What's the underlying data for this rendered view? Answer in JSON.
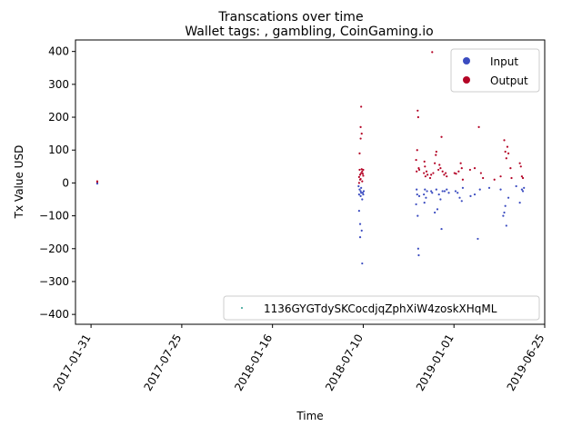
{
  "chart_data": {
    "type": "scatter",
    "title": "Transcations over time",
    "subtitle": "Wallet tags: , gambling, CoinGaming.io",
    "xlabel": "Time",
    "ylabel": "Tx Value USD",
    "xlim": [
      "2017-01-01",
      "2019-06-25"
    ],
    "ylim": [
      -430,
      435
    ],
    "x_ticks": [
      "2017-01-31",
      "2017-07-25",
      "2018-01-16",
      "2018-07-10",
      "2019-01-01",
      "2019-06-25"
    ],
    "y_ticks": [
      -400,
      -300,
      -200,
      -100,
      0,
      100,
      200,
      300,
      400
    ],
    "legend_upper": {
      "placement": "top-right",
      "entries": [
        "Input",
        "Output"
      ]
    },
    "legend_lower": {
      "placement": "bottom-right",
      "entries": [
        "1136GYGTdySKCocdjqZphXiW4zoskXHqML"
      ]
    },
    "colors": {
      "Input": "#3b4cc0",
      "Output": "#b40426",
      "address": "#2a9d8f"
    },
    "series": [
      {
        "name": "Output",
        "points": [
          [
            "2017-02-12",
            5
          ],
          [
            "2017-02-12",
            1
          ],
          [
            "2018-07-02",
            0
          ],
          [
            "2018-07-02",
            18
          ],
          [
            "2018-07-03",
            40
          ],
          [
            "2018-07-03",
            90
          ],
          [
            "2018-07-04",
            25
          ],
          [
            "2018-07-04",
            10
          ],
          [
            "2018-07-05",
            135
          ],
          [
            "2018-07-05",
            170
          ],
          [
            "2018-07-06",
            232
          ],
          [
            "2018-07-06",
            30
          ],
          [
            "2018-07-07",
            150
          ],
          [
            "2018-07-07",
            42
          ],
          [
            "2018-07-08",
            35
          ],
          [
            "2018-07-09",
            28
          ],
          [
            "2018-07-10",
            40
          ],
          [
            "2018-07-10",
            22
          ],
          [
            "2018-07-05",
            12
          ],
          [
            "2018-07-08",
            5
          ],
          [
            "2018-10-20",
            70
          ],
          [
            "2018-10-21",
            35
          ],
          [
            "2018-10-22",
            100
          ],
          [
            "2018-10-23",
            220
          ],
          [
            "2018-10-24",
            200
          ],
          [
            "2018-10-25",
            45
          ],
          [
            "2018-10-26",
            40
          ],
          [
            "2018-11-04",
            30
          ],
          [
            "2018-11-05",
            65
          ],
          [
            "2018-11-06",
            50
          ],
          [
            "2018-11-07",
            20
          ],
          [
            "2018-11-09",
            35
          ],
          [
            "2018-11-11",
            25
          ],
          [
            "2018-11-16",
            15
          ],
          [
            "2018-11-18",
            25
          ],
          [
            "2018-11-20",
            398
          ],
          [
            "2018-11-22",
            30
          ],
          [
            "2018-11-25",
            60
          ],
          [
            "2018-11-27",
            85
          ],
          [
            "2018-11-28",
            95
          ],
          [
            "2018-12-02",
            40
          ],
          [
            "2018-12-04",
            55
          ],
          [
            "2018-12-06",
            45
          ],
          [
            "2018-12-08",
            140
          ],
          [
            "2018-12-10",
            35
          ],
          [
            "2018-12-13",
            25
          ],
          [
            "2018-12-16",
            30
          ],
          [
            "2018-12-18",
            20
          ],
          [
            "2019-01-02",
            30
          ],
          [
            "2019-01-05",
            28
          ],
          [
            "2019-01-10",
            35
          ],
          [
            "2019-01-14",
            60
          ],
          [
            "2019-01-16",
            45
          ],
          [
            "2019-01-18",
            10
          ],
          [
            "2019-02-01",
            40
          ],
          [
            "2019-02-10",
            45
          ],
          [
            "2019-02-18",
            170
          ],
          [
            "2019-02-22",
            30
          ],
          [
            "2019-02-26",
            15
          ],
          [
            "2019-03-20",
            10
          ],
          [
            "2019-04-01",
            20
          ],
          [
            "2019-04-08",
            130
          ],
          [
            "2019-04-10",
            95
          ],
          [
            "2019-04-12",
            75
          ],
          [
            "2019-04-14",
            110
          ],
          [
            "2019-04-16",
            90
          ],
          [
            "2019-04-20",
            45
          ],
          [
            "2019-04-22",
            15
          ],
          [
            "2019-05-08",
            60
          ],
          [
            "2019-05-10",
            50
          ],
          [
            "2019-05-12",
            20
          ],
          [
            "2019-05-14",
            15
          ]
        ]
      },
      {
        "name": "Input",
        "points": [
          [
            "2017-02-12",
            -2
          ],
          [
            "2018-07-01",
            -10
          ],
          [
            "2018-07-02",
            -35
          ],
          [
            "2018-07-02",
            -85
          ],
          [
            "2018-07-03",
            -20
          ],
          [
            "2018-07-04",
            -125
          ],
          [
            "2018-07-04",
            -165
          ],
          [
            "2018-07-05",
            -40
          ],
          [
            "2018-07-05",
            -25
          ],
          [
            "2018-07-06",
            -30
          ],
          [
            "2018-07-07",
            -145
          ],
          [
            "2018-07-08",
            -245
          ],
          [
            "2018-07-08",
            -50
          ],
          [
            "2018-07-09",
            -30
          ],
          [
            "2018-07-10",
            -35
          ],
          [
            "2018-07-11",
            -25
          ],
          [
            "2018-07-06",
            -15
          ],
          [
            "2018-10-20",
            -65
          ],
          [
            "2018-10-21",
            -20
          ],
          [
            "2018-10-22",
            -35
          ],
          [
            "2018-10-23",
            -100
          ],
          [
            "2018-10-24",
            -200
          ],
          [
            "2018-10-25",
            -220
          ],
          [
            "2018-10-26",
            -40
          ],
          [
            "2018-11-04",
            -35
          ],
          [
            "2018-11-05",
            -60
          ],
          [
            "2018-11-06",
            -20
          ],
          [
            "2018-11-08",
            -45
          ],
          [
            "2018-11-10",
            -25
          ],
          [
            "2018-11-18",
            -25
          ],
          [
            "2018-11-20",
            -30
          ],
          [
            "2018-11-25",
            -90
          ],
          [
            "2018-11-28",
            -20
          ],
          [
            "2018-11-30",
            -80
          ],
          [
            "2018-12-03",
            -35
          ],
          [
            "2018-12-06",
            -50
          ],
          [
            "2018-12-08",
            -140
          ],
          [
            "2018-12-10",
            -25
          ],
          [
            "2018-12-14",
            -25
          ],
          [
            "2018-12-18",
            -20
          ],
          [
            "2018-12-22",
            -30
          ],
          [
            "2019-01-04",
            -25
          ],
          [
            "2019-01-08",
            -30
          ],
          [
            "2019-01-12",
            -45
          ],
          [
            "2019-01-16",
            -55
          ],
          [
            "2019-01-18",
            -15
          ],
          [
            "2019-02-02",
            -40
          ],
          [
            "2019-02-10",
            -35
          ],
          [
            "2019-02-16",
            -170
          ],
          [
            "2019-02-20",
            -20
          ],
          [
            "2019-03-10",
            -15
          ],
          [
            "2019-04-01",
            -20
          ],
          [
            "2019-04-06",
            -100
          ],
          [
            "2019-04-08",
            -90
          ],
          [
            "2019-04-10",
            -70
          ],
          [
            "2019-04-12",
            -130
          ],
          [
            "2019-04-16",
            -45
          ],
          [
            "2019-05-01",
            -10
          ],
          [
            "2019-05-08",
            -60
          ],
          [
            "2019-05-12",
            -20
          ],
          [
            "2019-05-14",
            -25
          ],
          [
            "2019-05-16",
            -15
          ]
        ]
      }
    ]
  }
}
